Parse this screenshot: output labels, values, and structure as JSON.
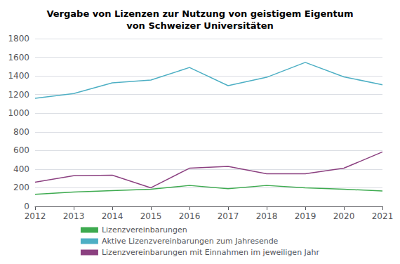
{
  "chart_data": {
    "type": "line",
    "title": "Vergabe von Lizenzen zur Nutzung von geistigem Eigentum\nvon Schweizer Universitäten",
    "categories": [
      "2012",
      "2013",
      "2014",
      "2015",
      "2016",
      "2017",
      "2018",
      "2019",
      "2020",
      "2021"
    ],
    "series": [
      {
        "name": "Lizenzvereinbarungen",
        "color": "#3DAA4F",
        "values": [
          130,
          155,
          170,
          185,
          225,
          190,
          225,
          200,
          185,
          165
        ]
      },
      {
        "name": "Aktive Lizenzvereinbarungen zum Jahresende",
        "color": "#4DAFC4",
        "values": [
          1160,
          1210,
          1325,
          1355,
          1490,
          1295,
          1385,
          1545,
          1390,
          1305
        ]
      },
      {
        "name": "Lizenzvereinbarungen mit Einnahmen im jeweiligen Jahr",
        "color": "#8B4080",
        "values": [
          260,
          330,
          335,
          200,
          410,
          430,
          350,
          350,
          410,
          585
        ]
      }
    ],
    "ylim": [
      0,
      1800
    ],
    "yticks": [
      0,
      200,
      400,
      600,
      800,
      1000,
      1200,
      1400,
      1600,
      1800
    ],
    "grid": true,
    "legend": "bottom"
  }
}
